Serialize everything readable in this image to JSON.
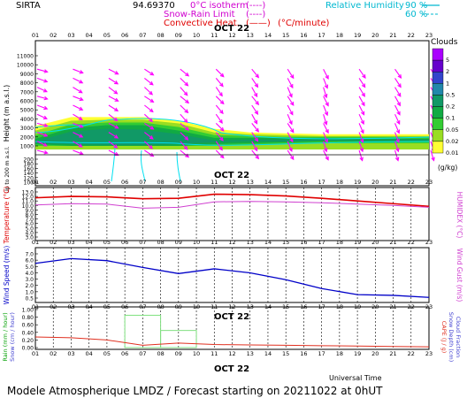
{
  "header": {
    "station": "SIRTA",
    "station_code": "94.69370",
    "legend_left": [
      {
        "text": "0°C isotherm",
        "sample": "(----)",
        "color": "#d000d0"
      },
      {
        "text": "Snow-Rain Limit",
        "sample": "(----)",
        "color": "#d000d0"
      },
      {
        "text": "Convective Heat.",
        "sample": "(——)",
        "unit": "(°C/minute)",
        "color": "#e00000"
      }
    ],
    "legend_right": [
      {
        "text": "Relative Humidity",
        "value": "90 %",
        "color": "#00b8d0"
      },
      {
        "text": "",
        "value": "60 %",
        "color": "#00b8d0"
      }
    ]
  },
  "hours": [
    "01",
    "02",
    "03",
    "04",
    "05",
    "06",
    "07",
    "08",
    "09",
    "10",
    "11",
    "12",
    "13",
    "14",
    "15",
    "16",
    "17",
    "18",
    "19",
    "20",
    "21",
    "22",
    "23"
  ],
  "date_label": "OCT 22",
  "footer": {
    "title": "Modele Atmospherique LMDZ / Forecast starting on 20211022 at 0hUT",
    "time_axis": "Universal Time"
  },
  "colors": {
    "arrow": "#ff00ff",
    "rh": "#00e0f0",
    "temperature": "#e00000",
    "humidex": "#d040d0",
    "wind": "#0000c8",
    "rain": "#80e080",
    "cape": "#e03020"
  },
  "clouds_colorbar": {
    "title": "Clouds",
    "unit": "(g/kg)",
    "ticks": [
      "5",
      "2",
      "1",
      "0.5",
      "0.2",
      "0.1",
      "0.05",
      "0.02",
      "0.01"
    ],
    "colors": [
      "#aa00ff",
      "#6600cc",
      "#3344cc",
      "#2288aa",
      "#119966",
      "#11aa44",
      "#33cc33",
      "#99dd22",
      "#ffff33"
    ]
  },
  "chart_data": [
    {
      "type": "heatmap",
      "title": "",
      "ylabel": "Height (m a.s.l.)",
      "ylabel2": "Up to 200 m a.s.l.",
      "yticks_upper": [
        "11000",
        "10000",
        "9000",
        "8000",
        "7000",
        "6000",
        "5000",
        "4000",
        "3000",
        "2000",
        "1000"
      ],
      "yticks_lower": [
        "200",
        "180",
        "160",
        "140",
        "120",
        "100"
      ],
      "description_cloud_layer_m": {
        "from_hour": 1,
        "to_hour": 23,
        "base": 900,
        "top_max": 4200
      }
    },
    {
      "type": "line",
      "ylabel": "Temperature (°C)",
      "ylabel_right": "HUMIDEX (°C)",
      "yticks": [
        "13.0",
        "12.0",
        "11.0",
        "10.0",
        "9.0",
        "8.0",
        "7.0",
        "6.0",
        "5.0",
        "4.0",
        "3.0"
      ],
      "ylim": [
        3.0,
        13.5
      ],
      "series": [
        {
          "name": "Temperature",
          "x": [
            1,
            3,
            5,
            7,
            9,
            11,
            13,
            15,
            17,
            19,
            21,
            23
          ],
          "values": [
            11.7,
            12.0,
            11.9,
            11.5,
            11.6,
            12.5,
            12.4,
            12.1,
            11.6,
            11.0,
            10.4,
            9.8
          ]
        },
        {
          "name": "HUMIDEX",
          "x": [
            1,
            3,
            5,
            7,
            9,
            11,
            13,
            15,
            17,
            19,
            21,
            23
          ],
          "values": [
            10.1,
            10.4,
            10.3,
            9.4,
            9.6,
            10.8,
            10.9,
            10.8,
            10.6,
            10.3,
            10.0,
            9.6
          ]
        }
      ]
    },
    {
      "type": "line",
      "ylabel": "Wind Speed (m/s)",
      "ylabel_right": "Wind Gust (m/s)",
      "yticks": [
        "7.0",
        "6.0",
        "5.0",
        "4.0",
        "3.0",
        "2.0",
        "1.0",
        "0.5"
      ],
      "ylim": [
        0.0,
        7.5
      ],
      "series": [
        {
          "name": "Wind Speed",
          "x": [
            1,
            3,
            5,
            7,
            9,
            11,
            13,
            15,
            17,
            19,
            21,
            23
          ],
          "values": [
            5.6,
            6.3,
            6.0,
            5.0,
            4.1,
            4.8,
            4.2,
            3.2,
            1.9,
            1.0,
            0.9,
            0.6
          ]
        }
      ]
    },
    {
      "type": "bar",
      "ylabel": "Rain (mm / hour)",
      "ylabel2": "Snow (cm / hour)",
      "ylabel_right": "CAPE (J / g)",
      "ylabel_right2": "Snow Depth (cm)",
      "ylabel_right3": "Cloud Fraction",
      "yticks": [
        "1.00",
        "0.80",
        "0.60",
        "0.40",
        "0.20",
        "0.00"
      ],
      "ylim": [
        0,
        1.0
      ],
      "bars": [
        {
          "x_from": 6,
          "x_to": 8,
          "value": 0.85
        },
        {
          "x_from": 8,
          "x_to": 10,
          "value": 0.45
        }
      ],
      "series": [
        {
          "name": "CAPE",
          "x": [
            1,
            3,
            5,
            7,
            9,
            11,
            13,
            15,
            17,
            19,
            21,
            23
          ],
          "values": [
            0.28,
            0.26,
            0.2,
            0.06,
            0.12,
            0.08,
            0.07,
            0.06,
            0.05,
            0.04,
            0.03,
            0.02
          ]
        }
      ]
    }
  ]
}
